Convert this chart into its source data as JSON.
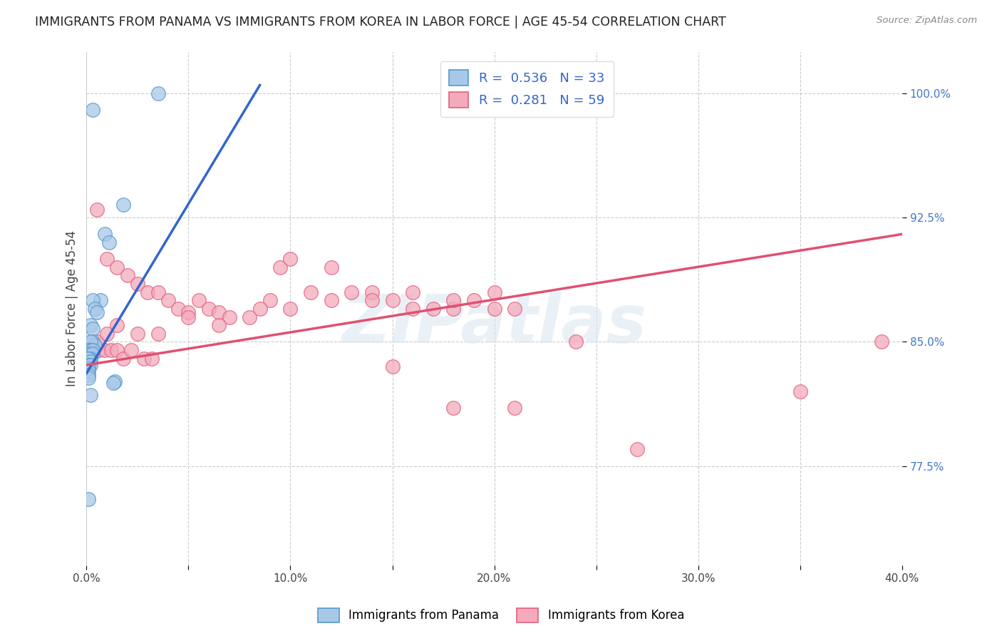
{
  "title": "IMMIGRANTS FROM PANAMA VS IMMIGRANTS FROM KOREA IN LABOR FORCE | AGE 45-54 CORRELATION CHART",
  "source": "Source: ZipAtlas.com",
  "ylabel": "In Labor Force | Age 45-54",
  "xlim": [
    0.0,
    0.4
  ],
  "ylim": [
    0.715,
    1.025
  ],
  "xticks": [
    0.0,
    0.05,
    0.1,
    0.15,
    0.2,
    0.25,
    0.3,
    0.35,
    0.4
  ],
  "xticklabels": [
    "0.0%",
    "",
    "10.0%",
    "",
    "20.0%",
    "",
    "30.0%",
    "",
    "40.0%"
  ],
  "yticks": [
    0.775,
    0.85,
    0.925,
    1.0
  ],
  "yticklabels": [
    "77.5%",
    "85.0%",
    "92.5%",
    "100.0%"
  ],
  "grid_color": "#cccccc",
  "background_color": "#ffffff",
  "panama_color": "#a8c8e8",
  "korea_color": "#f4aabb",
  "panama_edge": "#5599cc",
  "korea_edge": "#e06080",
  "blue_line_color": "#3366cc",
  "pink_line_color": "#e05070",
  "panama_R": 0.536,
  "panama_N": 33,
  "korea_R": 0.281,
  "korea_N": 59,
  "watermark": "ZIPatlas",
  "panama_x": [
    0.003,
    0.018,
    0.009,
    0.011,
    0.007,
    0.003,
    0.004,
    0.005,
    0.002,
    0.003,
    0.003,
    0.004,
    0.002,
    0.001,
    0.002,
    0.003,
    0.002,
    0.003,
    0.002,
    0.001,
    0.001,
    0.002,
    0.001,
    0.002,
    0.001,
    0.001,
    0.001,
    0.001,
    0.014,
    0.013,
    0.002,
    0.001,
    0.035
  ],
  "panama_y": [
    0.99,
    0.933,
    0.915,
    0.91,
    0.875,
    0.875,
    0.87,
    0.868,
    0.86,
    0.858,
    0.85,
    0.848,
    0.85,
    0.845,
    0.845,
    0.845,
    0.843,
    0.843,
    0.84,
    0.84,
    0.84,
    0.838,
    0.836,
    0.836,
    0.834,
    0.832,
    0.83,
    0.828,
    0.826,
    0.825,
    0.818,
    0.755,
    1.0
  ],
  "korea_x": [
    0.005,
    0.01,
    0.015,
    0.02,
    0.025,
    0.03,
    0.035,
    0.04,
    0.045,
    0.05,
    0.055,
    0.06,
    0.065,
    0.07,
    0.08,
    0.09,
    0.095,
    0.1,
    0.11,
    0.12,
    0.13,
    0.14,
    0.15,
    0.16,
    0.17,
    0.18,
    0.19,
    0.2,
    0.21,
    0.003,
    0.006,
    0.009,
    0.012,
    0.015,
    0.018,
    0.022,
    0.028,
    0.032,
    0.005,
    0.01,
    0.015,
    0.025,
    0.035,
    0.05,
    0.065,
    0.085,
    0.1,
    0.12,
    0.14,
    0.16,
    0.18,
    0.2,
    0.15,
    0.18,
    0.21,
    0.24,
    0.27,
    0.35,
    0.39
  ],
  "korea_y": [
    0.93,
    0.9,
    0.895,
    0.89,
    0.885,
    0.88,
    0.88,
    0.875,
    0.87,
    0.868,
    0.875,
    0.87,
    0.868,
    0.865,
    0.865,
    0.875,
    0.895,
    0.9,
    0.88,
    0.895,
    0.88,
    0.88,
    0.875,
    0.87,
    0.87,
    0.87,
    0.875,
    0.87,
    0.87,
    0.845,
    0.845,
    0.845,
    0.845,
    0.845,
    0.84,
    0.845,
    0.84,
    0.84,
    0.85,
    0.855,
    0.86,
    0.855,
    0.855,
    0.865,
    0.86,
    0.87,
    0.87,
    0.875,
    0.875,
    0.88,
    0.875,
    0.88,
    0.835,
    0.81,
    0.81,
    0.85,
    0.785,
    0.82,
    0.85
  ],
  "blue_line_x": [
    0.0,
    0.085
  ],
  "blue_line_y": [
    0.831,
    1.005
  ],
  "pink_line_x": [
    0.0,
    0.4
  ],
  "pink_line_y": [
    0.836,
    0.915
  ]
}
